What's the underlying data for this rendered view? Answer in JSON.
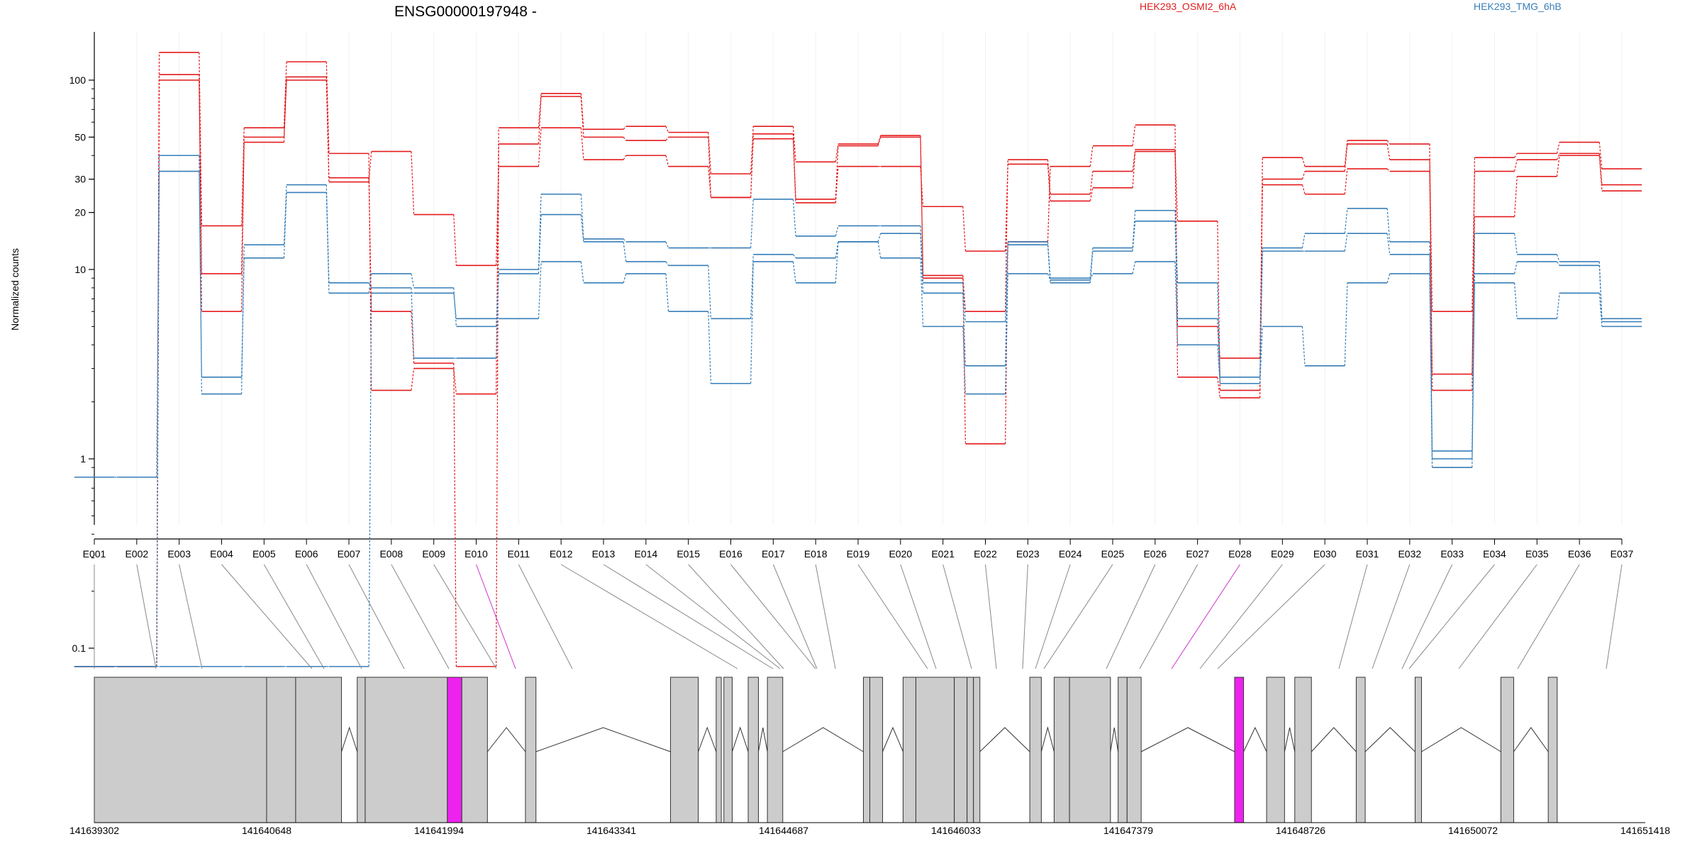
{
  "chart_data": {
    "type": "line",
    "title": "ENSG00000197948 -",
    "ylabel": "Normalized counts",
    "yscale": "log",
    "yticks": [
      0.1,
      1,
      10,
      20,
      30,
      50,
      100
    ],
    "ytick_labels": [
      "0.1",
      "1",
      "10",
      "20",
      "30",
      "50",
      "100"
    ],
    "legend": [
      {
        "name": "HEK293_OSMI2_6hA",
        "color": "#e41a1c"
      },
      {
        "name": "HEK293_TMG_6hB",
        "color": "#377eb8"
      }
    ],
    "categories": [
      "E001",
      "E002",
      "E003",
      "E004",
      "E005",
      "E006",
      "E007",
      "E008",
      "E009",
      "E010",
      "E011",
      "E012",
      "E013",
      "E014",
      "E015",
      "E016",
      "E017",
      "E018",
      "E019",
      "E020",
      "E021",
      "E022",
      "E023",
      "E024",
      "E025",
      "E026",
      "E027",
      "E028",
      "E029",
      "E030",
      "E031",
      "E032",
      "E033",
      "E034",
      "E035",
      "E036",
      "E037"
    ],
    "series": [
      {
        "group": 0,
        "values": [
          0.08,
          0.08,
          100,
          9.5,
          47,
          100,
          29,
          42,
          19.5,
          10.5,
          35,
          56,
          38,
          40,
          35,
          24,
          49,
          22.5,
          35,
          35,
          21.5,
          12.5,
          36,
          23,
          27,
          42,
          18,
          2.3,
          28,
          25,
          34,
          33,
          2.8,
          19,
          31,
          40,
          26
        ]
      },
      {
        "group": 0,
        "values": [
          0.08,
          0.08,
          107,
          6,
          50,
          104,
          30.5,
          6,
          3.2,
          0.08,
          46,
          82,
          50,
          48,
          50,
          24,
          52,
          23.5,
          45,
          50,
          9.3,
          6,
          38,
          25,
          33,
          43,
          5,
          3.4,
          30,
          33,
          46,
          38,
          6,
          33,
          38,
          41,
          28
        ]
      },
      {
        "group": 0,
        "values": [
          0.08,
          0.08,
          140,
          17,
          56,
          125,
          41,
          2.3,
          3,
          2.2,
          56,
          85,
          55,
          57,
          53,
          32,
          57,
          37,
          46,
          51,
          9,
          1.2,
          14,
          35,
          45,
          58,
          2.7,
          2.1,
          39,
          35,
          48,
          46,
          2.3,
          39,
          41,
          47,
          34
        ]
      },
      {
        "group": 1,
        "values": [
          0.8,
          0.8,
          40,
          2.2,
          13.5,
          28,
          8.5,
          8,
          3.4,
          3.4,
          10,
          25,
          14.5,
          14,
          13,
          13,
          23.5,
          15,
          17,
          17,
          8.5,
          5.3,
          14,
          9,
          13,
          20.5,
          8.5,
          2.7,
          13,
          15.5,
          21,
          14,
          1.1,
          15.5,
          12,
          11,
          5.3
        ]
      },
      {
        "group": 1,
        "values": [
          0.08,
          0.08,
          33,
          2.7,
          11.5,
          25.5,
          7.5,
          9.5,
          8,
          5,
          9.5,
          19.5,
          14,
          11,
          10.5,
          5.5,
          12,
          11.5,
          14,
          15.5,
          7.5,
          3.1,
          13.5,
          8.5,
          12.5,
          18,
          5.5,
          2.5,
          12.5,
          12.5,
          15.5,
          12,
          1,
          9.5,
          11,
          10.5,
          5.5
        ]
      },
      {
        "group": 1,
        "values": [
          0.08,
          0.08,
          0.08,
          0.08,
          0.08,
          0.08,
          0.08,
          7.5,
          7.5,
          5.5,
          5.5,
          11,
          8.5,
          9.5,
          6,
          2.5,
          11,
          8.5,
          14,
          11.5,
          5,
          2.2,
          9.5,
          8.8,
          9.5,
          11,
          4,
          2.5,
          5,
          3.1,
          8.5,
          9.5,
          0.9,
          8.5,
          5.5,
          7.5,
          5
        ]
      }
    ],
    "gene_model": {
      "coordinate_labels": [
        "141639302",
        "141640648",
        "141641994",
        "141643341",
        "141644687",
        "141646033",
        "141647379",
        "141648726",
        "141650072",
        "141651418"
      ],
      "highlighted_exons": [
        "E010",
        "E028"
      ],
      "colors": {
        "exon": "#cccccc",
        "highlight": "#ee22ee",
        "connector_highlight": "#cc33cc"
      }
    }
  }
}
